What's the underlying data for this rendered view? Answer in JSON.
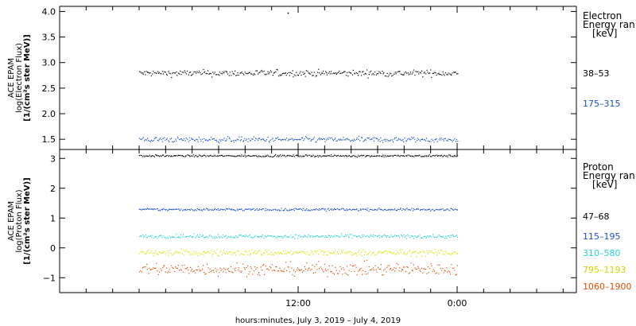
{
  "chart_data": [
    {
      "type": "scatter",
      "panel": "electron",
      "ylabel_lines": [
        "ACE EPAM",
        "log(Electron Flux)",
        "[1/(cm²s ster MeV)]"
      ],
      "ylim": [
        1.3,
        4.1
      ],
      "yticks": [
        1.5,
        2.0,
        2.5,
        3.0,
        3.5,
        4.0
      ],
      "ytick_labels": [
        "1.5",
        "2.0",
        "2.5",
        "3.0",
        "3.5",
        "4.0"
      ],
      "legend_title_lines": [
        "Electron",
        "Energy ran",
        "[keV]"
      ],
      "series": [
        {
          "name": "38–53",
          "color": "#000000",
          "mean": 2.8,
          "spread": 0.06,
          "outliers": [
            [
              11.2,
              3.98
            ]
          ]
        },
        {
          "name": "175–315",
          "color": "#1a4fc4",
          "mean": 1.5,
          "spread": 0.05,
          "outliers": []
        }
      ]
    },
    {
      "type": "scatter",
      "panel": "proton",
      "ylabel_lines": [
        "ACE EPAM",
        "log(Proton Flux)",
        "[1/(cm²s ster MeV)]"
      ],
      "ylim": [
        -1.5,
        3.3
      ],
      "yticks": [
        -1,
        0,
        1,
        2,
        3
      ],
      "ytick_labels": [
        "−1",
        "0",
        "1",
        "2",
        "3"
      ],
      "legend_title_lines": [
        "Proton",
        "Energy ran",
        "[keV]"
      ],
      "series": [
        {
          "name": "47–68",
          "color": "#000000",
          "mean": 3.1,
          "spread": 0.03,
          "outliers": []
        },
        {
          "name": "115–195",
          "color": "#1a4fc4",
          "mean": 1.3,
          "spread": 0.04,
          "outliers": []
        },
        {
          "name": "310–580",
          "color": "#28d2d2",
          "mean": 0.4,
          "spread": 0.06,
          "outliers": []
        },
        {
          "name": "795–1193",
          "color": "#e0e000",
          "mean": -0.15,
          "spread": 0.1,
          "outliers": []
        },
        {
          "name": "1060–1900",
          "color": "#e64b00",
          "mean": -0.7,
          "spread": 0.2,
          "outliers": []
        }
      ]
    }
  ],
  "x_axis": {
    "range_hours": [
      -6,
      33
    ],
    "data_hours": [
      0,
      24
    ],
    "ticks_hours": [
      -4,
      -2,
      0,
      2,
      4,
      6,
      8,
      10,
      12,
      14,
      16,
      18,
      20,
      22,
      24,
      26,
      28,
      30,
      32
    ],
    "labeled_ticks": [
      {
        "hour": 12,
        "label": "12:00"
      },
      {
        "hour": 24,
        "label": "0:00"
      }
    ],
    "xlabel": "hours:minutes, July  3, 2019 – July  4, 2019"
  }
}
